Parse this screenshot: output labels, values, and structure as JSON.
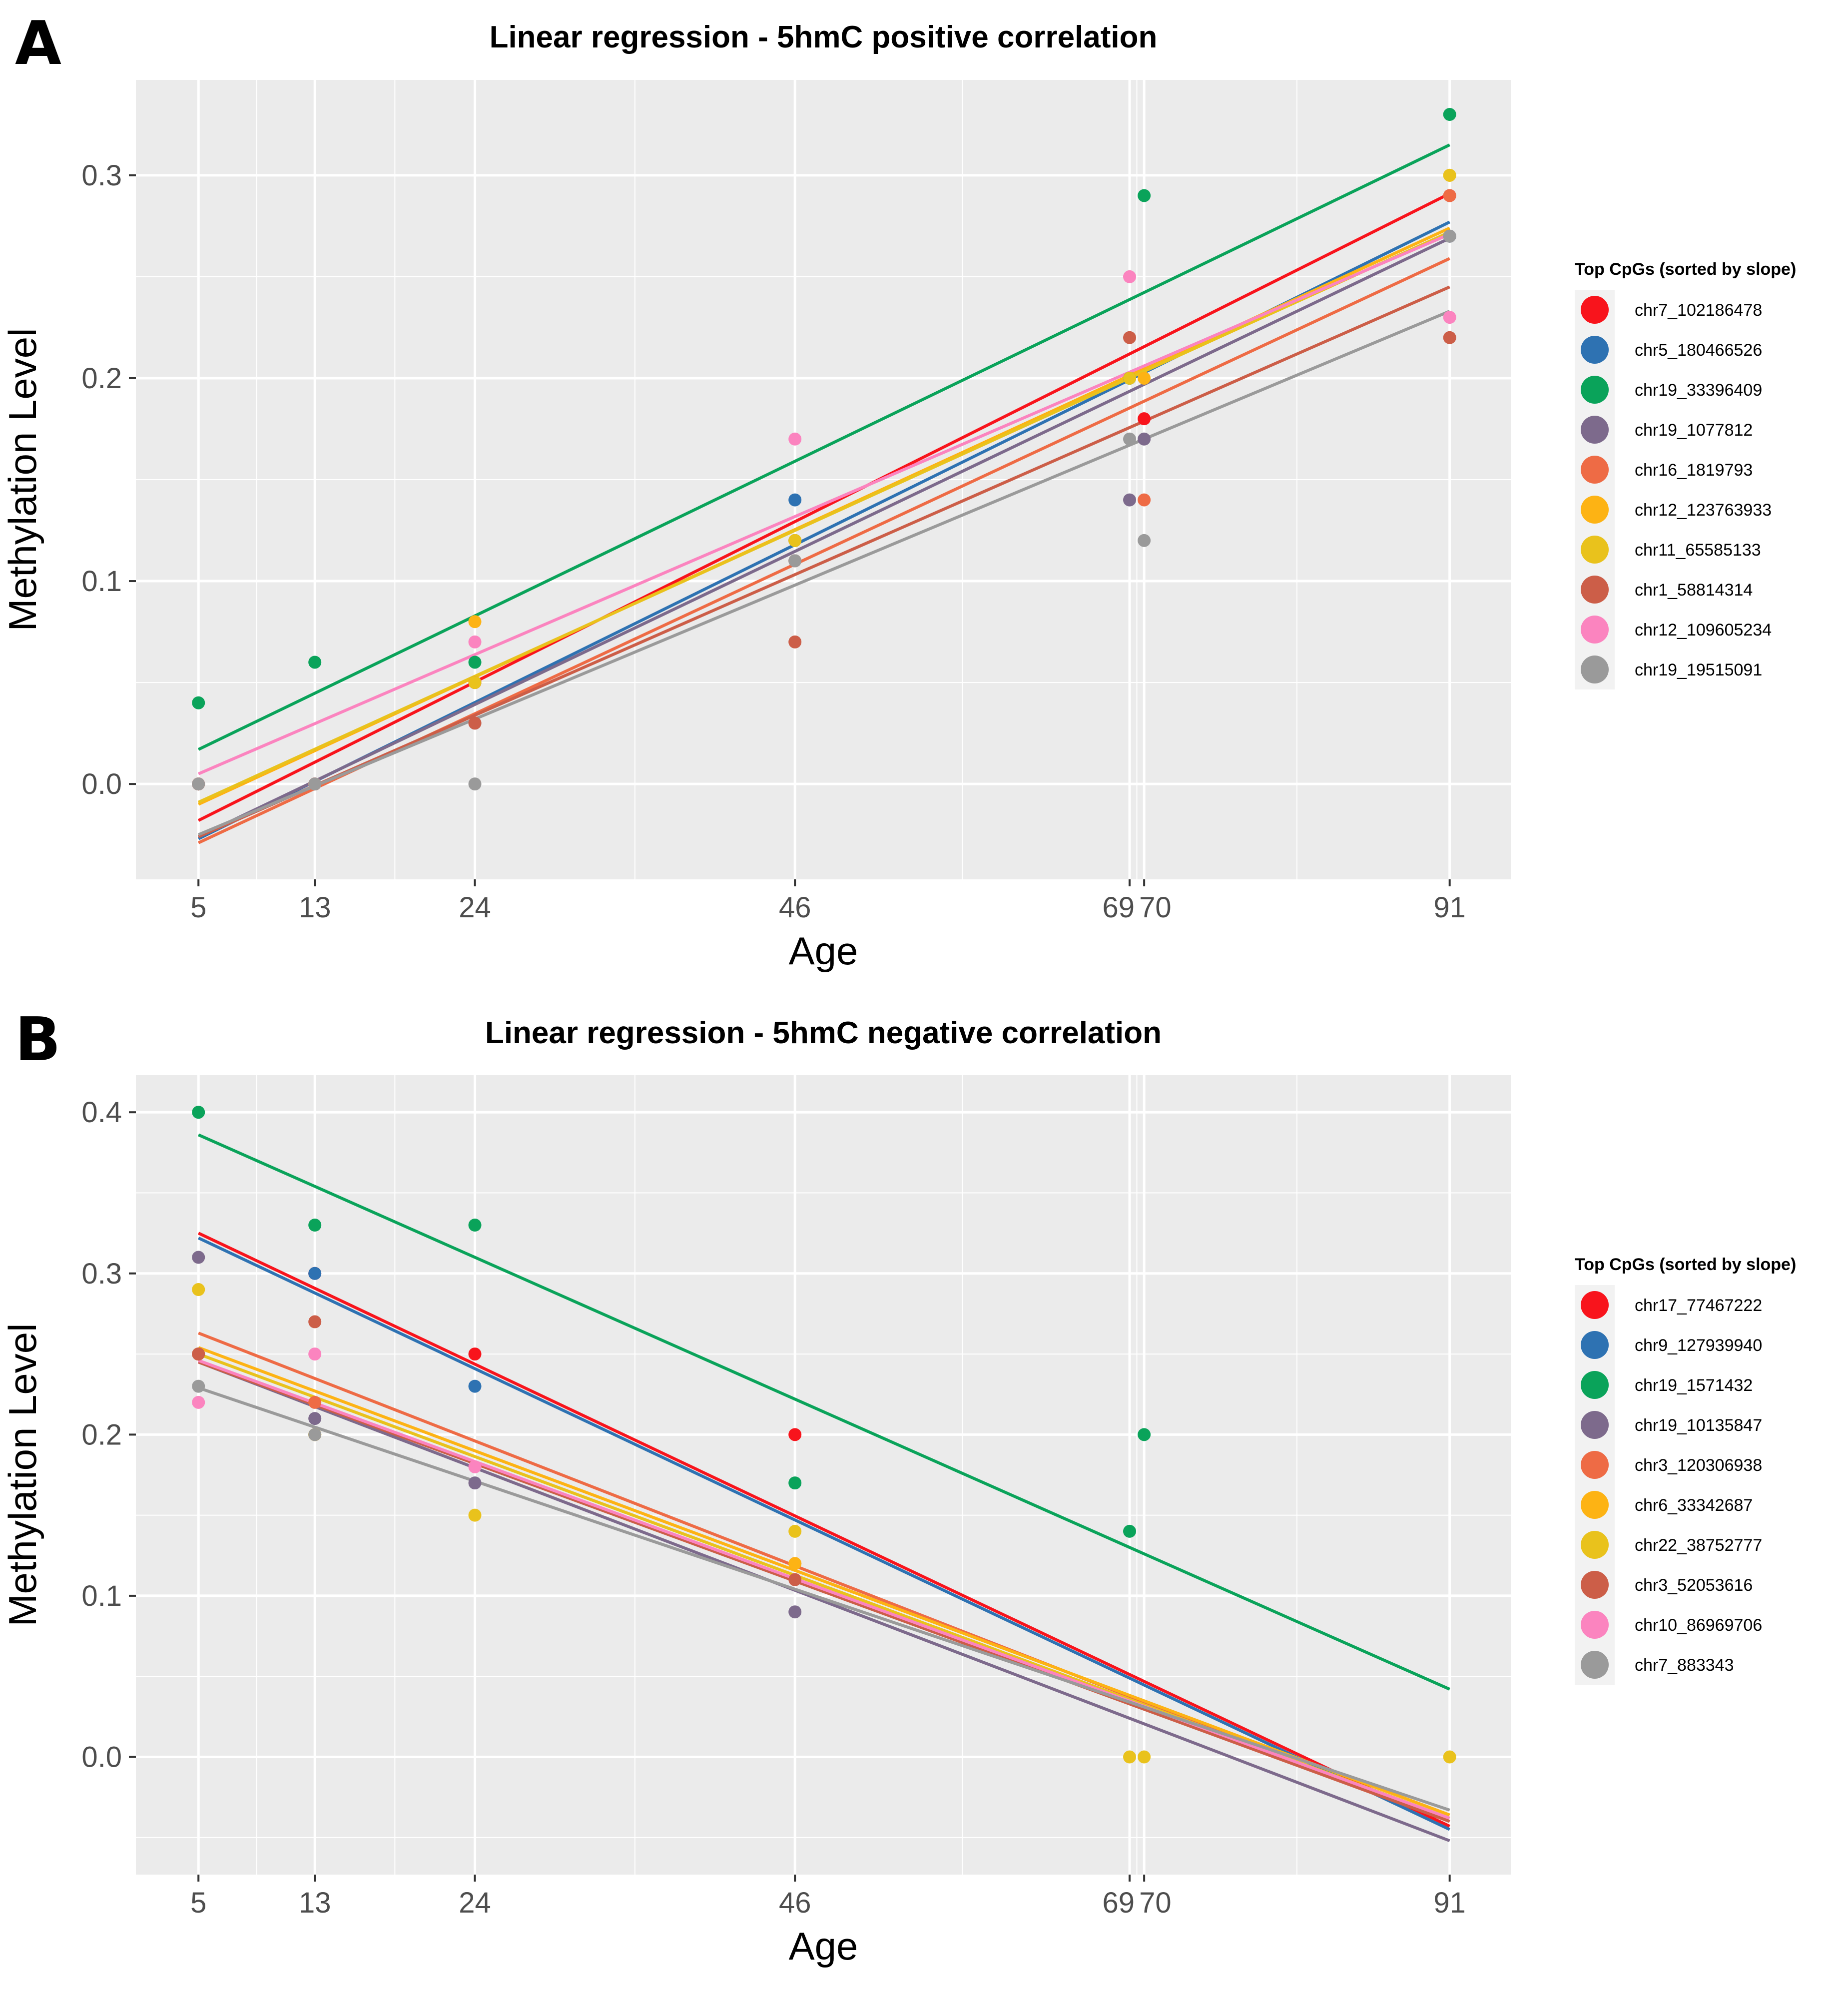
{
  "chart_data": [
    {
      "panel_label": "A",
      "type": "scatter",
      "title": "Linear regression - 5hmC positive correlation",
      "xlabel": "Age",
      "ylabel": "Methylation Level",
      "xlim": [
        0.7,
        95.2
      ],
      "ylim": [
        -0.047,
        0.347
      ],
      "x_ticks": [
        5,
        13,
        24,
        46,
        69,
        70,
        91
      ],
      "x_tick_labels": [
        "5",
        "13",
        "24",
        "46",
        "69",
        "70",
        "91"
      ],
      "y_ticks": [
        0.0,
        0.1,
        0.2,
        0.3
      ],
      "y_tick_labels": [
        "0.0",
        "0.1",
        "0.2",
        "0.3"
      ],
      "y_minor_ticks": [
        -0.05,
        0.05,
        0.15,
        0.25
      ],
      "legend_title": "Top CpGs (sorted by slope)",
      "legend_position": "right",
      "grid": true,
      "series": [
        {
          "name": "chr7_102186478",
          "color": "#F8141C",
          "points": [
            [
              5,
              0.0
            ],
            [
              13,
              0.0
            ],
            [
              24,
              0.05
            ],
            [
              46,
              0.12
            ],
            [
              70,
              0.18
            ],
            [
              91,
              0.29
            ]
          ],
          "fit": [
            [
              5,
              -0.018
            ],
            [
              91,
              0.291
            ]
          ]
        },
        {
          "name": "chr5_180466526",
          "color": "#2E72B2",
          "points": [
            [
              5,
              0.0
            ],
            [
              13,
              0.0
            ],
            [
              24,
              0.05
            ],
            [
              46,
              0.14
            ],
            [
              69,
              0.2
            ],
            [
              91,
              0.27
            ]
          ],
          "fit": [
            [
              5,
              -0.027
            ],
            [
              91,
              0.277
            ]
          ]
        },
        {
          "name": "chr19_33396409",
          "color": "#0AA35A",
          "points": [
            [
              5,
              0.04
            ],
            [
              13,
              0.06
            ],
            [
              24,
              0.06
            ],
            [
              46,
              0.12
            ],
            [
              69,
              0.2
            ],
            [
              70,
              0.29
            ],
            [
              91,
              0.33
            ]
          ],
          "fit": [
            [
              5,
              0.017
            ],
            [
              91,
              0.315
            ]
          ]
        },
        {
          "name": "chr19_1077812",
          "color": "#7D6A8C",
          "points": [
            [
              5,
              0.0
            ],
            [
              13,
              0.0
            ],
            [
              24,
              0.03
            ],
            [
              46,
              0.11
            ],
            [
              69,
              0.14
            ],
            [
              70,
              0.17
            ],
            [
              91,
              0.27
            ]
          ],
          "fit": [
            [
              5,
              -0.026
            ],
            [
              91,
              0.269
            ]
          ]
        },
        {
          "name": "chr16_1819793",
          "color": "#EE6B45",
          "points": [
            [
              5,
              0.0
            ],
            [
              13,
              0.0
            ],
            [
              24,
              0.05
            ],
            [
              46,
              0.11
            ],
            [
              70,
              0.14
            ],
            [
              91,
              0.29
            ]
          ],
          "fit": [
            [
              5,
              -0.029
            ],
            [
              91,
              0.259
            ]
          ]
        },
        {
          "name": "chr12_123763933",
          "color": "#FDB314",
          "points": [
            [
              5,
              0.0
            ],
            [
              13,
              0.0
            ],
            [
              24,
              0.08
            ],
            [
              46,
              0.12
            ],
            [
              70,
              0.2
            ],
            [
              91,
              0.3
            ]
          ],
          "fit": [
            [
              5,
              -0.01
            ],
            [
              91,
              0.274
            ]
          ]
        },
        {
          "name": "chr11_65585133",
          "color": "#E9C21C",
          "points": [
            [
              5,
              0.0
            ],
            [
              13,
              0.0
            ],
            [
              24,
              0.05
            ],
            [
              46,
              0.12
            ],
            [
              69,
              0.2
            ],
            [
              91,
              0.3
            ]
          ],
          "fit": [
            [
              5,
              -0.009
            ],
            [
              91,
              0.272
            ]
          ]
        },
        {
          "name": "chr1_58814314",
          "color": "#CC5E48",
          "points": [
            [
              5,
              0.0
            ],
            [
              13,
              0.0
            ],
            [
              24,
              0.03
            ],
            [
              46,
              0.07
            ],
            [
              69,
              0.22
            ],
            [
              91,
              0.22
            ]
          ],
          "fit": [
            [
              5,
              -0.026
            ],
            [
              91,
              0.245
            ]
          ]
        },
        {
          "name": "chr12_109605234",
          "color": "#FB84BF",
          "points": [
            [
              5,
              0.0
            ],
            [
              13,
              0.0
            ],
            [
              24,
              0.07
            ],
            [
              46,
              0.17
            ],
            [
              69,
              0.25
            ],
            [
              91,
              0.23
            ]
          ],
          "fit": [
            [
              5,
              0.005
            ],
            [
              91,
              0.271
            ]
          ]
        },
        {
          "name": "chr19_19515091",
          "color": "#9A9A9A",
          "points": [
            [
              5,
              0.0
            ],
            [
              13,
              0.0
            ],
            [
              24,
              0.0
            ],
            [
              46,
              0.11
            ],
            [
              69,
              0.17
            ],
            [
              70,
              0.12
            ],
            [
              91,
              0.27
            ]
          ],
          "fit": [
            [
              5,
              -0.025
            ],
            [
              91,
              0.233
            ]
          ]
        }
      ]
    },
    {
      "panel_label": "B",
      "type": "scatter",
      "title": "Linear regression - 5hmC negative correlation",
      "xlabel": "Age",
      "ylabel": "Methylation Level",
      "xlim": [
        0.7,
        95.2
      ],
      "ylim": [
        -0.073,
        0.423
      ],
      "x_ticks": [
        5,
        13,
        24,
        46,
        69,
        70,
        91
      ],
      "x_tick_labels": [
        "5",
        "13",
        "24",
        "46",
        "69",
        "70",
        "91"
      ],
      "y_ticks": [
        0.0,
        0.1,
        0.2,
        0.3,
        0.4
      ],
      "y_tick_labels": [
        "0.0",
        "0.1",
        "0.2",
        "0.3",
        "0.4"
      ],
      "y_minor_ticks": [
        -0.05,
        0.05,
        0.15,
        0.25,
        0.35
      ],
      "legend_title": "Top CpGs (sorted by slope)",
      "legend_position": "right",
      "grid": true,
      "series": [
        {
          "name": "chr17_77467222",
          "color": "#F8141C",
          "points": [
            [
              5,
              0.25
            ],
            [
              13,
              0.3
            ],
            [
              24,
              0.25
            ],
            [
              46,
              0.2
            ]
          ],
          "fit": [
            [
              5,
              0.325
            ],
            [
              91,
              -0.043
            ]
          ]
        },
        {
          "name": "chr9_127939940",
          "color": "#2E72B2",
          "points": [
            [
              5,
              0.25
            ],
            [
              13,
              0.3
            ],
            [
              24,
              0.23
            ]
          ],
          "fit": [
            [
              5,
              0.322
            ],
            [
              91,
              -0.045
            ]
          ]
        },
        {
          "name": "chr19_1571432",
          "color": "#0AA35A",
          "points": [
            [
              5,
              0.4
            ],
            [
              13,
              0.33
            ],
            [
              24,
              0.33
            ],
            [
              46,
              0.17
            ],
            [
              69,
              0.14
            ],
            [
              70,
              0.2
            ]
          ],
          "fit": [
            [
              5,
              0.386
            ],
            [
              91,
              0.042
            ]
          ]
        },
        {
          "name": "chr19_10135847",
          "color": "#7D6A8C",
          "points": [
            [
              5,
              0.31
            ],
            [
              13,
              0.21
            ],
            [
              24,
              0.17
            ],
            [
              46,
              0.09
            ]
          ],
          "fit": [
            [
              5,
              0.245
            ],
            [
              91,
              -0.052
            ]
          ]
        },
        {
          "name": "chr3_120306938",
          "color": "#EE6B45",
          "points": [
            [
              5,
              0.25
            ],
            [
              13,
              0.22
            ],
            [
              46,
              0.12
            ]
          ],
          "fit": [
            [
              5,
              0.263
            ],
            [
              91,
              -0.04
            ]
          ]
        },
        {
          "name": "chr6_33342687",
          "color": "#FDB314",
          "points": [
            [
              5,
              0.25
            ],
            [
              13,
              0.2
            ],
            [
              46,
              0.12
            ]
          ],
          "fit": [
            [
              5,
              0.254
            ],
            [
              91,
              -0.036
            ]
          ]
        },
        {
          "name": "chr22_38752777",
          "color": "#E9C21C",
          "points": [
            [
              5,
              0.29
            ],
            [
              13,
              0.2
            ],
            [
              24,
              0.15
            ],
            [
              46,
              0.14
            ],
            [
              69,
              0.0
            ],
            [
              70,
              0.0
            ],
            [
              91,
              0.0
            ]
          ],
          "fit": [
            [
              5,
              0.25
            ],
            [
              91,
              -0.038
            ]
          ]
        },
        {
          "name": "chr3_52053616",
          "color": "#CC5E48",
          "points": [
            [
              5,
              0.25
            ],
            [
              13,
              0.27
            ],
            [
              46,
              0.11
            ]
          ],
          "fit": [
            [
              5,
              0.245
            ],
            [
              91,
              -0.04
            ]
          ]
        },
        {
          "name": "chr10_86969706",
          "color": "#FB84BF",
          "points": [
            [
              5,
              0.22
            ],
            [
              13,
              0.25
            ],
            [
              24,
              0.18
            ]
          ],
          "fit": [
            [
              5,
              0.246
            ],
            [
              91,
              -0.038
            ]
          ]
        },
        {
          "name": "chr7_883343",
          "color": "#9A9A9A",
          "points": [
            [
              5,
              0.23
            ],
            [
              13,
              0.2
            ]
          ],
          "fit": [
            [
              5,
              0.229
            ],
            [
              91,
              -0.033
            ]
          ]
        }
      ]
    }
  ]
}
